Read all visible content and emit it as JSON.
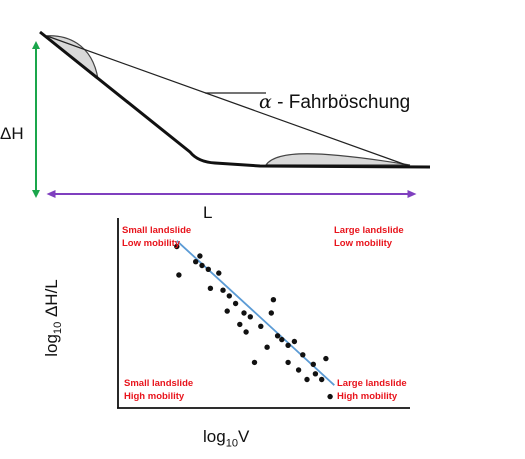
{
  "diagram": {
    "slope_labels": {
      "alpha_symbol": "α",
      "alpha_text": "- Fahrböschung",
      "height": "ΔH",
      "length": "L"
    },
    "colors": {
      "height_arrow": "#1aa64b",
      "length_arrow": "#7f3fbf",
      "deposit_fill": "#d9d9d9",
      "trend_line": "#5b9bd5",
      "annotation_red": "#e8141c"
    }
  },
  "chart_data": {
    "type": "scatter",
    "xlabel_prefix": "log",
    "xlabel_sub": "10",
    "xlabel_suffix": "V",
    "ylabel_prefix": "log",
    "ylabel_sub": "10",
    "ylabel_suffix": " ΔH/L",
    "quadrant_labels": {
      "top_left": [
        "Small landslide",
        "Low mobility"
      ],
      "top_right": [
        "Large landslide",
        "Low mobility"
      ],
      "bottom_left": [
        "Small landslide",
        "High mobility"
      ],
      "bottom_right": [
        "Large landslide",
        "High mobility"
      ]
    },
    "trendline": {
      "x": [
        0.28,
        1.03
      ],
      "y": [
        0.88,
        0.12
      ]
    },
    "points": [
      [
        0.28,
        0.85
      ],
      [
        0.29,
        0.7
      ],
      [
        0.37,
        0.77
      ],
      [
        0.39,
        0.8
      ],
      [
        0.4,
        0.75
      ],
      [
        0.43,
        0.73
      ],
      [
        0.44,
        0.63
      ],
      [
        0.48,
        0.71
      ],
      [
        0.5,
        0.62
      ],
      [
        0.53,
        0.59
      ],
      [
        0.52,
        0.51
      ],
      [
        0.56,
        0.55
      ],
      [
        0.58,
        0.44
      ],
      [
        0.6,
        0.5
      ],
      [
        0.61,
        0.4
      ],
      [
        0.63,
        0.48
      ],
      [
        0.65,
        0.24
      ],
      [
        0.68,
        0.43
      ],
      [
        0.71,
        0.32
      ],
      [
        0.73,
        0.5
      ],
      [
        0.74,
        0.57
      ],
      [
        0.76,
        0.38
      ],
      [
        0.78,
        0.36
      ],
      [
        0.81,
        0.33
      ],
      [
        0.81,
        0.24
      ],
      [
        0.84,
        0.35
      ],
      [
        0.86,
        0.2
      ],
      [
        0.88,
        0.28
      ],
      [
        0.9,
        0.15
      ],
      [
        0.93,
        0.23
      ],
      [
        0.94,
        0.18
      ],
      [
        0.97,
        0.15
      ],
      [
        0.99,
        0.26
      ],
      [
        1.01,
        0.06
      ]
    ]
  }
}
